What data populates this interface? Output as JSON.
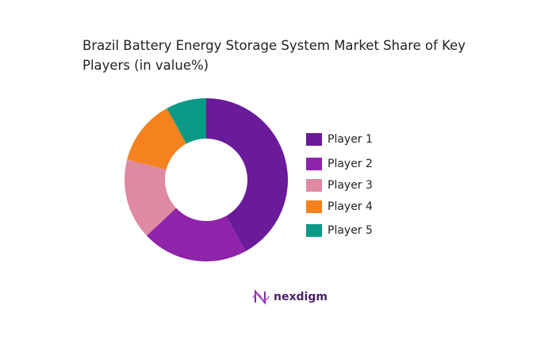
{
  "chart_data": {
    "type": "pie",
    "title": "Brazil Battery Energy Storage System Market Share of Key Players (in value%)",
    "categories": [
      "Player 1",
      "Player 2",
      "Player 3",
      "Player 4",
      "Player 5"
    ],
    "values": [
      42,
      21,
      16,
      13,
      8
    ],
    "colors": [
      "#6a1b9a",
      "#8e24aa",
      "#e08aa2",
      "#f5821f",
      "#0b9985"
    ],
    "donut": true
  },
  "logo": "nexdigm"
}
